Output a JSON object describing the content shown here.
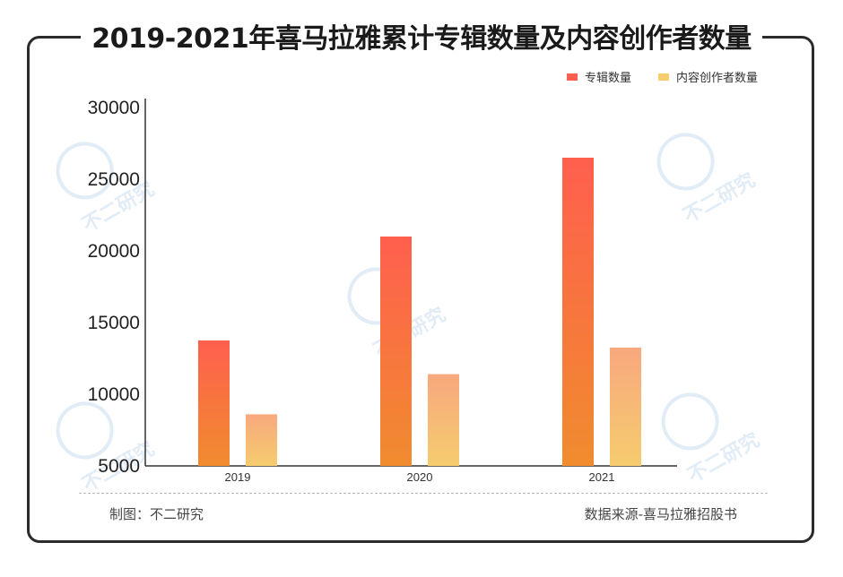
{
  "title": "2019-2021年喜马拉雅累计专辑数量及内容创作者数量",
  "footer": {
    "credit": "制图：不二研究",
    "source": "数据来源-喜马拉雅招股书"
  },
  "watermark": "不二研究",
  "colors": {
    "bar1_top": "#FF5F4E",
    "bar1_bottom": "#F08C2E",
    "bar2_top": "#F8A87E",
    "bar2_bottom": "#F5CC6E",
    "frame": "#2b2b2b"
  },
  "chart_data": {
    "type": "bar",
    "categories": [
      "2019",
      "2020",
      "2021"
    ],
    "series": [
      {
        "name": "专辑数量",
        "values": [
          13750,
          21000,
          26500
        ]
      },
      {
        "name": "内容创作者数量",
        "values": [
          8600,
          11400,
          13250
        ]
      }
    ],
    "ylim": [
      5000,
      30000
    ],
    "yticks": [
      5000,
      10000,
      15000,
      20000,
      25000,
      30000
    ],
    "legend": "top-right",
    "grid": false
  }
}
